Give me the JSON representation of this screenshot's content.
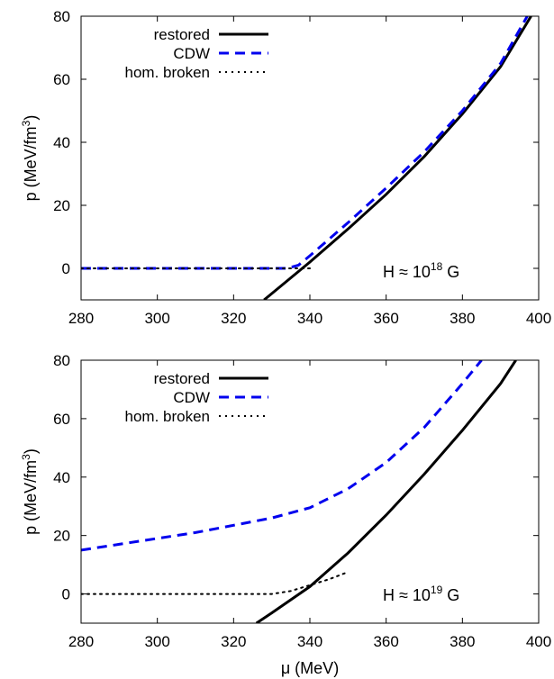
{
  "chart_data": [
    {
      "type": "line",
      "xlabel": "",
      "ylabel": "p (MeV/fm",
      "ylabel_sup": "3",
      "ylabel_close": ")",
      "xlim": [
        280,
        400
      ],
      "ylim": [
        -10,
        80
      ],
      "xticks": [
        "280",
        "300",
        "320",
        "340",
        "360",
        "380",
        "400"
      ],
      "yticks": [
        "0",
        "20",
        "40",
        "60",
        "80"
      ],
      "legend_position": "top-left",
      "annotation": {
        "prefix": "H ≈ 10",
        "exponent": "18",
        "suffix": " G"
      },
      "series": [
        {
          "name": "restored",
          "color": "#000000",
          "style": "solid",
          "x": [
            328,
            333,
            340,
            350,
            360,
            370,
            380,
            390,
            398
          ],
          "y": [
            -10,
            -5,
            2,
            12.5,
            23.5,
            35.5,
            49,
            64,
            80
          ]
        },
        {
          "name": "CDW",
          "color": "#0000ee",
          "style": "dashed",
          "x": [
            280,
            300,
            320,
            334,
            337,
            340,
            350,
            360,
            370,
            380,
            390,
            397
          ],
          "y": [
            0,
            0,
            0,
            0,
            1,
            4,
            14.5,
            25.5,
            37,
            50,
            65,
            80
          ]
        },
        {
          "name": "hom. broken",
          "color": "#000000",
          "style": "dotted",
          "x": [
            280,
            300,
            320,
            340
          ],
          "y": [
            0,
            0,
            0,
            0
          ]
        }
      ]
    },
    {
      "type": "line",
      "xlabel": "μ (MeV)",
      "ylabel": "p (MeV/fm",
      "ylabel_sup": "3",
      "ylabel_close": ")",
      "xlim": [
        280,
        400
      ],
      "ylim": [
        -10,
        80
      ],
      "xticks": [
        "280",
        "300",
        "320",
        "340",
        "360",
        "380",
        "400"
      ],
      "yticks": [
        "0",
        "20",
        "40",
        "60",
        "80"
      ],
      "legend_position": "top-left",
      "annotation": {
        "prefix": "H ≈ 10",
        "exponent": "19",
        "suffix": " G"
      },
      "series": [
        {
          "name": "restored",
          "color": "#000000",
          "style": "solid",
          "x": [
            326,
            330,
            340,
            350,
            360,
            370,
            380,
            390,
            394
          ],
          "y": [
            -10,
            -6.5,
            2.5,
            14,
            27,
            41,
            56,
            72,
            80
          ]
        },
        {
          "name": "CDW",
          "color": "#0000ee",
          "style": "dashed",
          "x": [
            280,
            290,
            300,
            310,
            320,
            330,
            340,
            350,
            360,
            370,
            380,
            385
          ],
          "y": [
            15,
            17,
            19,
            21,
            23.5,
            26,
            29.5,
            36,
            45,
            57,
            72,
            80
          ]
        },
        {
          "name": "hom. broken",
          "color": "#000000",
          "style": "dotted",
          "x": [
            280,
            300,
            320,
            330,
            335,
            340,
            345,
            350
          ],
          "y": [
            0,
            0,
            0,
            0,
            1,
            3,
            5,
            7.5
          ]
        }
      ]
    }
  ]
}
